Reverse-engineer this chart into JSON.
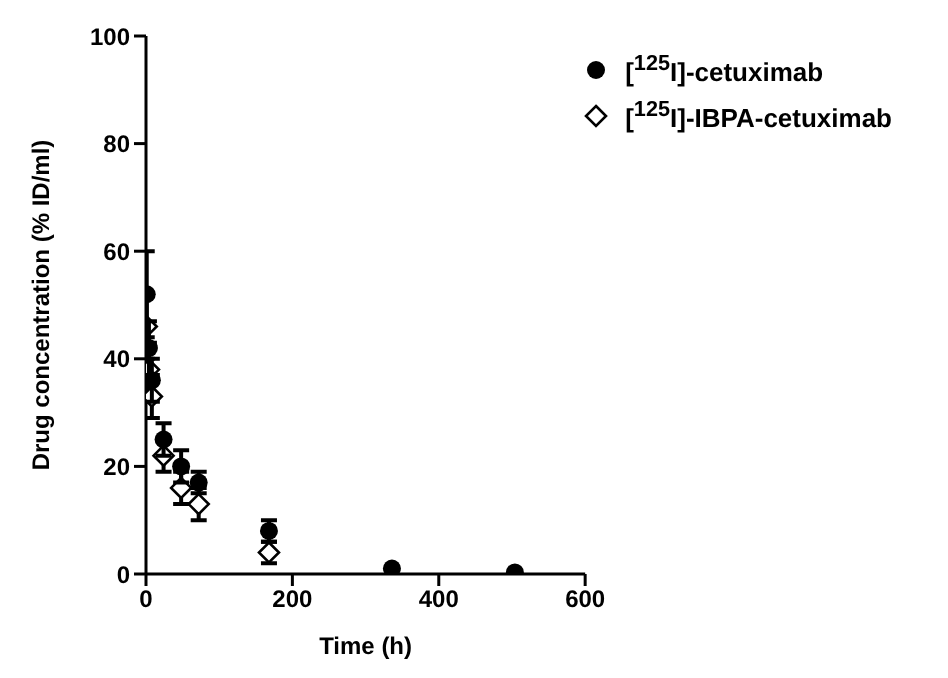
{
  "chart_data": {
    "type": "scatter",
    "xlabel": "Time (h)",
    "ylabel": "Drug concentration (% ID/ml)",
    "xlim": [
      0,
      600
    ],
    "xticks": [
      0,
      200,
      400,
      600
    ],
    "ylim": [
      0,
      100
    ],
    "yticks": [
      0,
      20,
      40,
      60,
      80,
      100
    ],
    "legend": "top right",
    "series": [
      {
        "name": "[$^{125}$I]-cetuximab",
        "color": "#000000",
        "marker": "circle",
        "x": [
          1,
          4,
          8,
          24,
          48,
          72,
          168,
          336,
          504
        ],
        "values": [
          52,
          42,
          36,
          25,
          20,
          17,
          8,
          1,
          0.3
        ],
        "errors": [
          8,
          5,
          4,
          3,
          3,
          2,
          2,
          null,
          null
        ]
      },
      {
        "name": "[$^{125}$I]-IBPA-cetuximab",
        "color": "#000000",
        "marker": "diamond",
        "x": [
          1,
          4,
          8,
          24,
          48,
          72,
          168
        ],
        "values": [
          46,
          38,
          33,
          22,
          16,
          13,
          4
        ],
        "errors": [
          6,
          5,
          4,
          3,
          3,
          3,
          2
        ]
      }
    ]
  }
}
